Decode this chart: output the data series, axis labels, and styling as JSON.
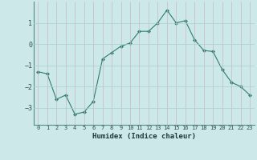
{
  "x": [
    0,
    1,
    2,
    3,
    4,
    5,
    6,
    7,
    8,
    9,
    10,
    11,
    12,
    13,
    14,
    15,
    16,
    17,
    18,
    19,
    20,
    21,
    22,
    23
  ],
  "y": [
    -1.3,
    -1.4,
    -2.6,
    -2.4,
    -3.3,
    -3.2,
    -2.7,
    -0.7,
    -0.4,
    -0.1,
    0.05,
    0.6,
    0.6,
    1.0,
    1.6,
    1.0,
    1.1,
    0.2,
    -0.3,
    -0.35,
    -1.2,
    -1.8,
    -2.0,
    -2.4
  ],
  "line_color": "#2e7d6e",
  "marker": "D",
  "marker_size": 2,
  "bg_color": "#cce8e8",
  "grid_color": "#aacfcf",
  "xlabel": "Humidex (Indice chaleur)",
  "xlim": [
    -0.5,
    23.5
  ],
  "ylim": [
    -3.8,
    2.0
  ],
  "yticks": [
    -3,
    -2,
    -1,
    0,
    1
  ],
  "xticks": [
    0,
    1,
    2,
    3,
    4,
    5,
    6,
    7,
    8,
    9,
    10,
    11,
    12,
    13,
    14,
    15,
    16,
    17,
    18,
    19,
    20,
    21,
    22,
    23
  ],
  "figsize": [
    3.2,
    2.0
  ],
  "dpi": 100
}
